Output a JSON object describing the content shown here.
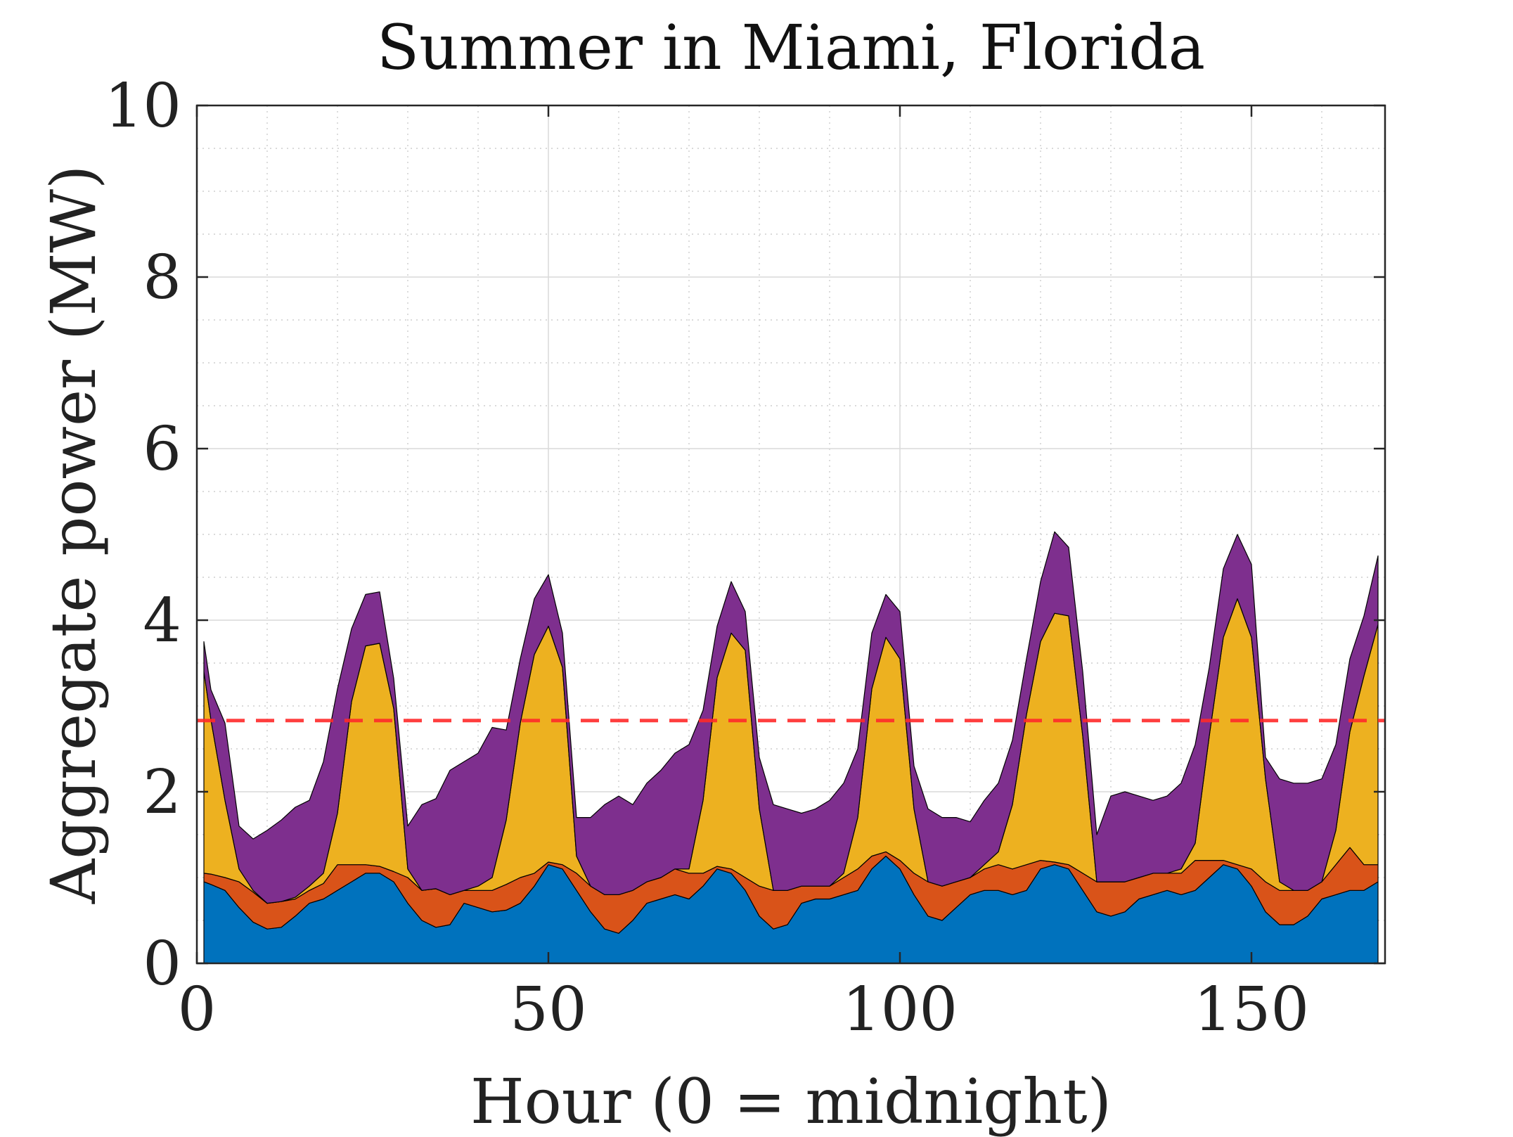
{
  "chart_data": {
    "type": "area",
    "stacked": true,
    "title": "Summer in Miami, Florida",
    "xlabel": "Hour (0 = midnight)",
    "ylabel": "Aggregate power (MW)",
    "xlim": [
      0,
      169
    ],
    "ylim": [
      0,
      10
    ],
    "xticks": [
      0,
      50,
      100,
      150
    ],
    "yticks": [
      0,
      2,
      4,
      6,
      8,
      10
    ],
    "xtick_labels": [
      "0",
      "50",
      "100",
      "150"
    ],
    "ytick_labels": [
      "0",
      "2",
      "4",
      "6",
      "8",
      "10"
    ],
    "grid": true,
    "minor_grid": true,
    "legend": "none",
    "x": [
      1,
      2,
      4,
      6,
      8,
      10,
      12,
      14,
      16,
      18,
      20,
      22,
      24,
      26,
      28,
      30,
      32,
      34,
      36,
      38,
      40,
      42,
      44,
      46,
      48,
      50,
      52,
      54,
      56,
      58,
      60,
      62,
      64,
      66,
      68,
      70,
      72,
      74,
      76,
      78,
      80,
      82,
      84,
      86,
      88,
      90,
      92,
      94,
      96,
      98,
      100,
      102,
      104,
      106,
      108,
      110,
      112,
      114,
      116,
      118,
      120,
      122,
      124,
      126,
      128,
      130,
      132,
      134,
      136,
      138,
      140,
      142,
      144,
      146,
      148,
      150,
      152,
      154,
      156,
      158,
      160,
      162,
      164,
      166,
      168
    ],
    "series": [
      {
        "color": "#0072BD",
        "values": [
          0.95,
          0.92,
          0.85,
          0.65,
          0.48,
          0.4,
          0.42,
          0.55,
          0.7,
          0.75,
          0.85,
          0.95,
          1.05,
          1.05,
          0.95,
          0.7,
          0.5,
          0.42,
          0.45,
          0.7,
          0.65,
          0.6,
          0.62,
          0.7,
          0.9,
          1.15,
          1.1,
          0.85,
          0.6,
          0.4,
          0.35,
          0.5,
          0.7,
          0.75,
          0.8,
          0.75,
          0.9,
          1.1,
          1.05,
          0.85,
          0.55,
          0.4,
          0.45,
          0.7,
          0.75,
          0.75,
          0.8,
          0.85,
          1.1,
          1.25,
          1.1,
          0.8,
          0.55,
          0.5,
          0.65,
          0.8,
          0.85,
          0.85,
          0.8,
          0.85,
          1.1,
          1.15,
          1.1,
          0.85,
          0.6,
          0.55,
          0.6,
          0.75,
          0.8,
          0.85,
          0.8,
          0.85,
          1.0,
          1.15,
          1.1,
          0.9,
          0.6,
          0.45,
          0.45,
          0.55,
          0.75,
          0.8,
          0.85,
          0.85,
          0.95
        ]
      },
      {
        "color": "#D95319",
        "values": [
          0.1,
          0.12,
          0.15,
          0.3,
          0.35,
          0.3,
          0.3,
          0.2,
          0.15,
          0.18,
          0.3,
          0.2,
          0.1,
          0.08,
          0.12,
          0.3,
          0.35,
          0.45,
          0.35,
          0.15,
          0.2,
          0.25,
          0.3,
          0.3,
          0.15,
          0.03,
          0.05,
          0.2,
          0.3,
          0.4,
          0.45,
          0.35,
          0.25,
          0.25,
          0.3,
          0.3,
          0.15,
          0.03,
          0.05,
          0.15,
          0.35,
          0.45,
          0.4,
          0.2,
          0.15,
          0.15,
          0.2,
          0.25,
          0.15,
          0.05,
          0.1,
          0.25,
          0.4,
          0.4,
          0.3,
          0.2,
          0.25,
          0.3,
          0.3,
          0.3,
          0.1,
          0.03,
          0.05,
          0.2,
          0.35,
          0.4,
          0.35,
          0.25,
          0.25,
          0.2,
          0.25,
          0.35,
          0.2,
          0.05,
          0.05,
          0.2,
          0.35,
          0.4,
          0.4,
          0.3,
          0.2,
          0.35,
          0.5,
          0.3,
          0.2
        ]
      },
      {
        "color": "#EDB120",
        "values": [
          2.35,
          1.8,
          0.9,
          0.15,
          0.02,
          0.0,
          0.0,
          0.02,
          0.05,
          0.12,
          0.6,
          1.9,
          2.55,
          2.6,
          1.9,
          0.1,
          0.0,
          0.0,
          0.0,
          0.0,
          0.05,
          0.15,
          0.75,
          1.8,
          2.55,
          2.75,
          2.3,
          0.2,
          0.0,
          0.0,
          0.0,
          0.0,
          0.0,
          0.0,
          0.0,
          0.05,
          0.85,
          2.2,
          2.75,
          2.65,
          0.9,
          0.0,
          0.0,
          0.0,
          0.0,
          0.0,
          0.05,
          0.6,
          1.95,
          2.5,
          2.35,
          0.75,
          0.0,
          0.0,
          0.0,
          0.0,
          0.05,
          0.15,
          0.75,
          1.75,
          2.55,
          2.9,
          2.9,
          1.6,
          0.0,
          0.0,
          0.0,
          0.0,
          0.0,
          0.0,
          0.05,
          0.2,
          1.45,
          2.6,
          3.1,
          2.7,
          1.2,
          0.1,
          0.0,
          0.0,
          0.0,
          0.4,
          1.35,
          2.2,
          2.8
        ]
      },
      {
        "color": "#7E2F8E",
        "values": [
          0.35,
          0.35,
          0.9,
          0.5,
          0.6,
          0.85,
          0.95,
          1.05,
          1.0,
          1.3,
          1.45,
          0.85,
          0.6,
          0.6,
          0.35,
          0.5,
          1.0,
          1.05,
          1.45,
          1.5,
          1.55,
          1.75,
          1.05,
          0.75,
          0.65,
          0.6,
          0.4,
          0.45,
          0.8,
          1.05,
          1.15,
          1.0,
          1.15,
          1.25,
          1.35,
          1.45,
          1.05,
          0.6,
          0.6,
          0.45,
          0.6,
          1.0,
          0.95,
          0.85,
          0.9,
          1.0,
          1.05,
          0.8,
          0.65,
          0.5,
          0.55,
          0.5,
          0.85,
          0.8,
          0.75,
          0.65,
          0.75,
          0.8,
          0.75,
          0.65,
          0.7,
          0.95,
          0.8,
          0.75,
          0.55,
          1.0,
          1.05,
          0.95,
          0.85,
          0.9,
          1.0,
          1.15,
          0.8,
          0.8,
          0.75,
          0.85,
          0.25,
          1.2,
          1.25,
          1.25,
          1.2,
          1.0,
          0.85,
          0.7,
          0.8
        ]
      }
    ],
    "reference_line": {
      "y": 2.83,
      "color": "#FF2A2A",
      "style": "dashed"
    }
  }
}
